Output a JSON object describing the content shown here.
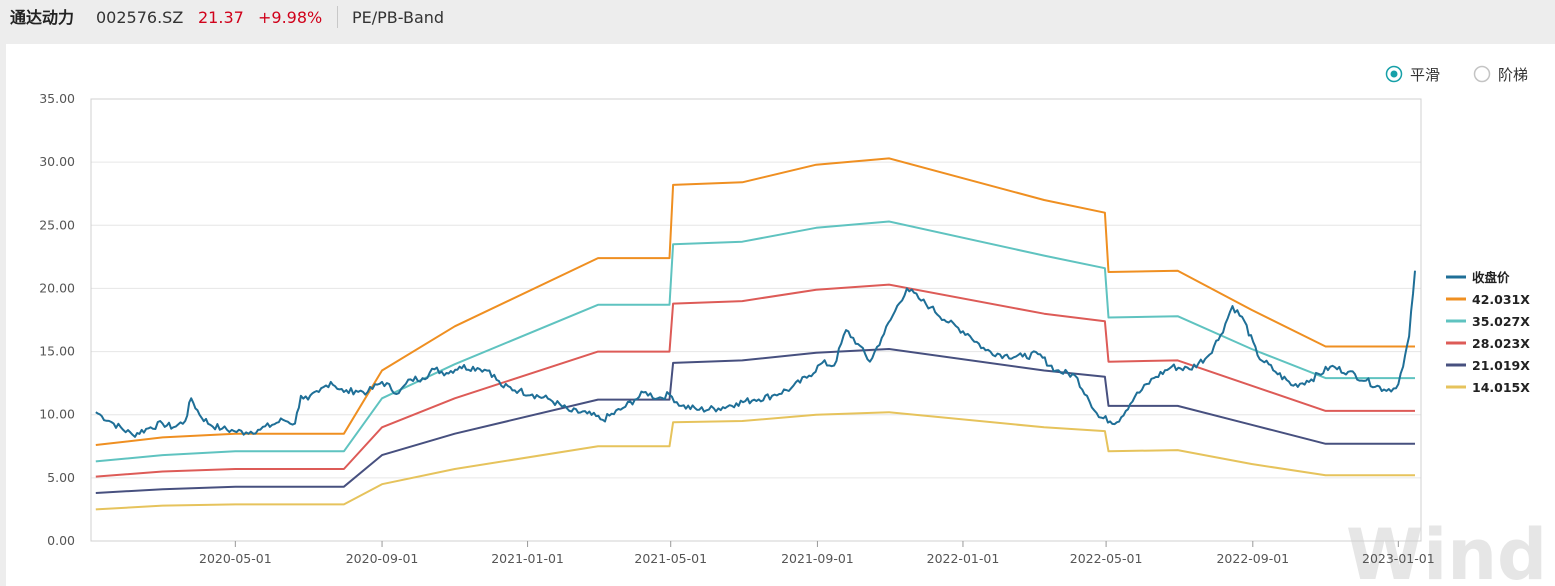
{
  "header": {
    "name": "通达动力",
    "code": "002576.SZ",
    "price": "21.37",
    "change": "+9.98%",
    "tool": "PE/PB-Band"
  },
  "modes": [
    {
      "label": "平滑",
      "selected": true
    },
    {
      "label": "阶梯",
      "selected": false
    }
  ],
  "watermark": "Wind",
  "colors": {
    "close": "#1f6f97",
    "b42": "#ef8f21",
    "b35": "#5fc3c0",
    "b28": "#dd5b57",
    "b21": "#47507f",
    "b14": "#e6c35c",
    "accent": "#16a0a8"
  },
  "chart_data": {
    "type": "line",
    "x_axis": {
      "type": "date",
      "range": [
        "2020-01-01",
        "2023-01-20"
      ],
      "ticks": [
        "2020-05-01",
        "2020-09-01",
        "2021-01-01",
        "2021-05-01",
        "2021-09-01",
        "2022-01-01",
        "2022-05-01",
        "2022-09-01",
        "2023-01-01"
      ]
    },
    "y_axis": {
      "range": [
        0,
        35
      ],
      "ticks": [
        "0.00",
        "5.00",
        "10.00",
        "15.00",
        "20.00",
        "25.00",
        "30.00",
        "35.00"
      ]
    },
    "grid": "horizontal",
    "legend_position": "right",
    "legend": [
      "收盘价",
      "42.031X",
      "35.027X",
      "28.023X",
      "21.019X",
      "14.015X"
    ],
    "bands": [
      {
        "name": "42.031X",
        "color_key": "b42",
        "points": [
          [
            "2020-01-05",
            7.6
          ],
          [
            "2020-03-01",
            8.2
          ],
          [
            "2020-05-01",
            8.5
          ],
          [
            "2020-07-31",
            8.5
          ],
          [
            "2020-09-01",
            13.5
          ],
          [
            "2020-11-01",
            17.0
          ],
          [
            "2021-03-01",
            22.4
          ],
          [
            "2021-04-30",
            22.4
          ],
          [
            "2021-05-03",
            28.2
          ],
          [
            "2021-06-30",
            28.4
          ],
          [
            "2021-08-31",
            29.8
          ],
          [
            "2021-10-31",
            30.3
          ],
          [
            "2022-03-10",
            27.0
          ],
          [
            "2022-04-30",
            26.0
          ],
          [
            "2022-05-03",
            21.3
          ],
          [
            "2022-06-30",
            21.4
          ],
          [
            "2022-08-31",
            18.3
          ],
          [
            "2022-11-01",
            15.4
          ],
          [
            "2023-01-15",
            15.4
          ]
        ]
      },
      {
        "name": "35.027X",
        "color_key": "b35",
        "points": [
          [
            "2020-01-05",
            6.3
          ],
          [
            "2020-03-01",
            6.8
          ],
          [
            "2020-05-01",
            7.1
          ],
          [
            "2020-07-31",
            7.1
          ],
          [
            "2020-09-01",
            11.3
          ],
          [
            "2020-11-01",
            14.0
          ],
          [
            "2021-03-01",
            18.7
          ],
          [
            "2021-04-30",
            18.7
          ],
          [
            "2021-05-03",
            23.5
          ],
          [
            "2021-06-30",
            23.7
          ],
          [
            "2021-08-31",
            24.8
          ],
          [
            "2021-10-31",
            25.3
          ],
          [
            "2022-03-10",
            22.6
          ],
          [
            "2022-04-30",
            21.6
          ],
          [
            "2022-05-03",
            17.7
          ],
          [
            "2022-06-30",
            17.8
          ],
          [
            "2022-08-31",
            15.2
          ],
          [
            "2022-11-01",
            12.9
          ],
          [
            "2023-01-15",
            12.9
          ]
        ]
      },
      {
        "name": "28.023X",
        "color_key": "b28",
        "points": [
          [
            "2020-01-05",
            5.1
          ],
          [
            "2020-03-01",
            5.5
          ],
          [
            "2020-05-01",
            5.7
          ],
          [
            "2020-07-31",
            5.7
          ],
          [
            "2020-09-01",
            9.0
          ],
          [
            "2020-11-01",
            11.3
          ],
          [
            "2021-03-01",
            15.0
          ],
          [
            "2021-04-30",
            15.0
          ],
          [
            "2021-05-03",
            18.8
          ],
          [
            "2021-06-30",
            19.0
          ],
          [
            "2021-08-31",
            19.9
          ],
          [
            "2021-10-31",
            20.3
          ],
          [
            "2022-03-10",
            18.0
          ],
          [
            "2022-04-30",
            17.4
          ],
          [
            "2022-05-03",
            14.2
          ],
          [
            "2022-06-30",
            14.3
          ],
          [
            "2022-08-31",
            12.3
          ],
          [
            "2022-11-01",
            10.3
          ],
          [
            "2023-01-15",
            10.3
          ]
        ]
      },
      {
        "name": "21.019X",
        "color_key": "b21",
        "points": [
          [
            "2020-01-05",
            3.8
          ],
          [
            "2020-03-01",
            4.1
          ],
          [
            "2020-05-01",
            4.3
          ],
          [
            "2020-07-31",
            4.3
          ],
          [
            "2020-09-01",
            6.8
          ],
          [
            "2020-11-01",
            8.5
          ],
          [
            "2021-03-01",
            11.2
          ],
          [
            "2021-04-30",
            11.2
          ],
          [
            "2021-05-03",
            14.1
          ],
          [
            "2021-06-30",
            14.3
          ],
          [
            "2021-08-31",
            14.9
          ],
          [
            "2021-10-31",
            15.2
          ],
          [
            "2022-03-10",
            13.5
          ],
          [
            "2022-04-30",
            13.0
          ],
          [
            "2022-05-03",
            10.7
          ],
          [
            "2022-06-30",
            10.7
          ],
          [
            "2022-08-31",
            9.2
          ],
          [
            "2022-11-01",
            7.7
          ],
          [
            "2023-01-15",
            7.7
          ]
        ]
      },
      {
        "name": "14.015X",
        "color_key": "b14",
        "points": [
          [
            "2020-01-05",
            2.5
          ],
          [
            "2020-03-01",
            2.8
          ],
          [
            "2020-05-01",
            2.9
          ],
          [
            "2020-07-31",
            2.9
          ],
          [
            "2020-09-01",
            4.5
          ],
          [
            "2020-11-01",
            5.7
          ],
          [
            "2021-03-01",
            7.5
          ],
          [
            "2021-04-30",
            7.5
          ],
          [
            "2021-05-03",
            9.4
          ],
          [
            "2021-06-30",
            9.5
          ],
          [
            "2021-08-31",
            10.0
          ],
          [
            "2021-10-31",
            10.2
          ],
          [
            "2022-03-10",
            9.0
          ],
          [
            "2022-04-30",
            8.7
          ],
          [
            "2022-05-03",
            7.1
          ],
          [
            "2022-06-30",
            7.2
          ],
          [
            "2022-08-31",
            6.1
          ],
          [
            "2022-11-01",
            5.2
          ],
          [
            "2023-01-15",
            5.2
          ]
        ]
      }
    ],
    "close": {
      "name": "收盘价",
      "color_key": "close",
      "points": [
        [
          "2020-01-05",
          10.2
        ],
        [
          "2020-01-10",
          9.9
        ],
        [
          "2020-01-20",
          9.3
        ],
        [
          "2020-02-05",
          8.4
        ],
        [
          "2020-02-20",
          9.0
        ],
        [
          "2020-03-01",
          9.3
        ],
        [
          "2020-03-10",
          9.0
        ],
        [
          "2020-03-20",
          9.5
        ],
        [
          "2020-03-25",
          11.3
        ],
        [
          "2020-04-01",
          10.0
        ],
        [
          "2020-04-10",
          9.2
        ],
        [
          "2020-04-20",
          8.9
        ],
        [
          "2020-04-30",
          8.7
        ],
        [
          "2020-05-10",
          8.6
        ],
        [
          "2020-05-20",
          8.8
        ],
        [
          "2020-06-01",
          9.2
        ],
        [
          "2020-06-10",
          9.6
        ],
        [
          "2020-06-20",
          9.3
        ],
        [
          "2020-06-25",
          11.5
        ],
        [
          "2020-07-01",
          11.2
        ],
        [
          "2020-07-10",
          11.8
        ],
        [
          "2020-07-20",
          12.6
        ],
        [
          "2020-07-31",
          11.8
        ],
        [
          "2020-08-10",
          11.9
        ],
        [
          "2020-08-20",
          11.8
        ],
        [
          "2020-09-01",
          12.6
        ],
        [
          "2020-09-15",
          11.7
        ],
        [
          "2020-09-25",
          12.8
        ],
        [
          "2020-10-05",
          12.9
        ],
        [
          "2020-10-15",
          13.6
        ],
        [
          "2020-10-25",
          13.3
        ],
        [
          "2020-11-05",
          13.8
        ],
        [
          "2020-11-20",
          13.7
        ],
        [
          "2020-11-30",
          13.5
        ],
        [
          "2020-12-10",
          12.3
        ],
        [
          "2020-12-25",
          11.9
        ],
        [
          "2021-01-05",
          11.6
        ],
        [
          "2021-01-20",
          11.2
        ],
        [
          "2021-02-05",
          10.3
        ],
        [
          "2021-02-20",
          10.1
        ],
        [
          "2021-03-05",
          9.6
        ],
        [
          "2021-03-20",
          10.4
        ],
        [
          "2021-04-01",
          11.2
        ],
        [
          "2021-04-10",
          11.8
        ],
        [
          "2021-04-20",
          11.3
        ],
        [
          "2021-04-30",
          11.6
        ],
        [
          "2021-05-10",
          10.7
        ],
        [
          "2021-05-25",
          10.4
        ],
        [
          "2021-06-10",
          10.5
        ],
        [
          "2021-06-25",
          10.9
        ],
        [
          "2021-07-10",
          11.2
        ],
        [
          "2021-07-25",
          11.5
        ],
        [
          "2021-08-10",
          12.1
        ],
        [
          "2021-08-25",
          13.1
        ],
        [
          "2021-09-05",
          14.1
        ],
        [
          "2021-09-15",
          13.9
        ],
        [
          "2021-09-25",
          16.7
        ],
        [
          "2021-10-05",
          15.6
        ],
        [
          "2021-10-15",
          14.2
        ],
        [
          "2021-10-25",
          16.1
        ],
        [
          "2021-11-05",
          18.2
        ],
        [
          "2021-11-15",
          20.0
        ],
        [
          "2021-11-25",
          19.2
        ],
        [
          "2021-12-05",
          18.5
        ],
        [
          "2021-12-20",
          17.3
        ],
        [
          "2022-01-05",
          16.4
        ],
        [
          "2022-01-20",
          15.1
        ],
        [
          "2022-02-05",
          14.7
        ],
        [
          "2022-02-20",
          14.6
        ],
        [
          "2022-03-05",
          14.8
        ],
        [
          "2022-03-20",
          13.5
        ],
        [
          "2022-04-05",
          13.1
        ],
        [
          "2022-04-15",
          11.5
        ],
        [
          "2022-04-25",
          9.8
        ],
        [
          "2022-05-10",
          9.4
        ],
        [
          "2022-05-25",
          11.4
        ],
        [
          "2022-06-10",
          12.9
        ],
        [
          "2022-06-25",
          13.8
        ],
        [
          "2022-07-10",
          13.6
        ],
        [
          "2022-07-25",
          14.6
        ],
        [
          "2022-08-05",
          16.3
        ],
        [
          "2022-08-15",
          18.6
        ],
        [
          "2022-08-25",
          17.4
        ],
        [
          "2022-09-05",
          14.7
        ],
        [
          "2022-09-20",
          13.4
        ],
        [
          "2022-10-05",
          12.3
        ],
        [
          "2022-10-20",
          12.8
        ],
        [
          "2022-11-05",
          13.8
        ],
        [
          "2022-11-20",
          13.4
        ],
        [
          "2022-12-05",
          12.7
        ],
        [
          "2022-12-20",
          12.0
        ],
        [
          "2022-12-30",
          12.1
        ],
        [
          "2023-01-05",
          13.8
        ],
        [
          "2023-01-10",
          16.2
        ],
        [
          "2023-01-15",
          21.4
        ]
      ]
    }
  }
}
